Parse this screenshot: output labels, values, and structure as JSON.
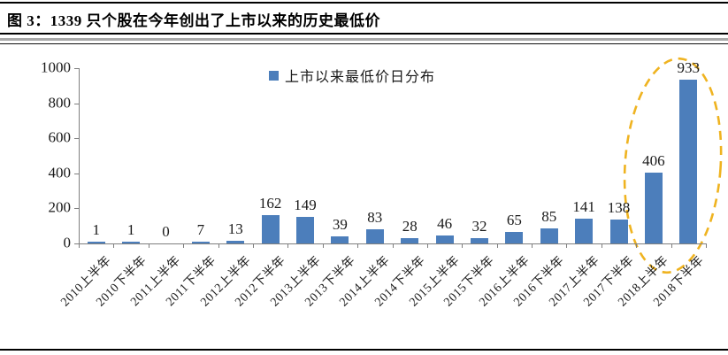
{
  "figure": {
    "title": "图 3：1339 只个股在今年创出了上市以来的历史最低价"
  },
  "chart_data": {
    "type": "bar",
    "title": "",
    "legend": {
      "label": "上市以来最低价日分布",
      "position": "top-center",
      "marker_color": "#4C7EBB"
    },
    "categories": [
      "2010上半年",
      "2010下半年",
      "2011上半年",
      "2011下半年",
      "2012上半年",
      "2012下半年",
      "2013上半年",
      "2013下半年",
      "2014上半年",
      "2014下半年",
      "2015上半年",
      "2015下半年",
      "2016上半年",
      "2016下半年",
      "2017上半年",
      "2017下半年",
      "2018上半年",
      "2018下半年"
    ],
    "series": [
      {
        "name": "上市以来最低价日分布",
        "color": "#4C7EBB",
        "values": [
          1,
          1,
          0,
          7,
          13,
          162,
          149,
          39,
          83,
          28,
          46,
          32,
          65,
          85,
          141,
          138,
          406,
          933
        ]
      }
    ],
    "xlabel": "",
    "ylabel": "",
    "ylim": [
      0,
      1000
    ],
    "yticks": [
      0,
      200,
      400,
      600,
      800,
      1000
    ],
    "grid": false,
    "data_labels": true,
    "legend_visible": true,
    "annotation": {
      "type": "dashed-ellipse",
      "color": "#EFB320",
      "around_categories": [
        "2018上半年",
        "2018下半年"
      ]
    }
  }
}
